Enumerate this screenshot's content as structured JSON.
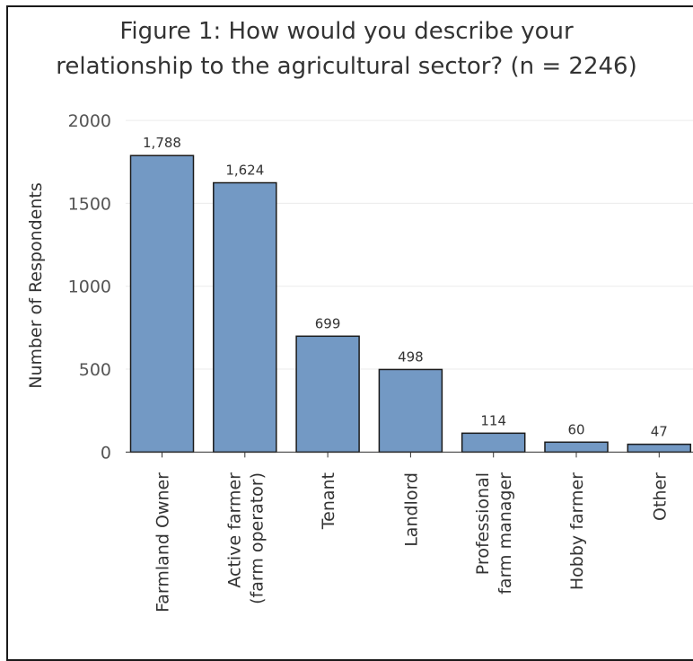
{
  "title_line1": "Figure 1: How would you describe your",
  "title_line2": "relationship to the agricultural sector? (n = 2246)",
  "colors": {
    "bar": "#7399c4",
    "bar_stroke": "#1a1a1a",
    "grid": "#ebebeb",
    "axis": "#333333"
  },
  "chart_data": {
    "type": "bar",
    "title": "Figure 1: How would you describe your relationship to the agricultural sector? (n = 2246)",
    "xlabel": "",
    "ylabel": "Number of Respondents",
    "ylim": [
      -90,
      2060
    ],
    "y_ticks": [
      0,
      500,
      1000,
      1500,
      2000
    ],
    "grid": "horizontal",
    "categories": [
      [
        "Farmland Owner"
      ],
      [
        "Active farmer",
        "(farm operator)"
      ],
      [
        "Tenant"
      ],
      [
        "Landlord"
      ],
      [
        "Professional",
        "farm manager"
      ],
      [
        "Hobby farmer"
      ],
      [
        "Other"
      ]
    ],
    "values": [
      1788,
      1624,
      699,
      498,
      114,
      60,
      47
    ],
    "value_labels": [
      "1,788",
      "1,624",
      "699",
      "498",
      "114",
      "60",
      "47"
    ]
  }
}
